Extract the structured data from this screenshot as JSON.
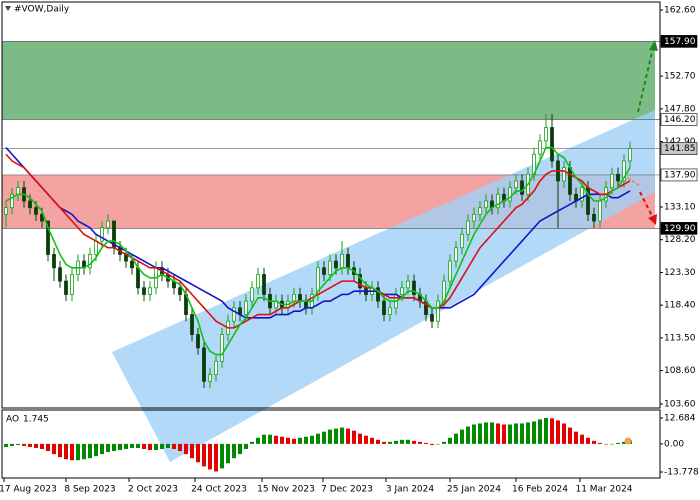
{
  "chart_data": [
    {
      "type": "candlestick",
      "title": "#VOW,Daily",
      "ylim": [
        103.0,
        163.8
      ],
      "yticks": [
        {
          "value": 162.6,
          "label": "162.60"
        },
        {
          "value": 152.7,
          "label": "152.70"
        },
        {
          "value": 147.8,
          "label": "147.80"
        },
        {
          "value": 142.9,
          "label": "142.90"
        },
        {
          "value": 133.1,
          "label": "133.10"
        },
        {
          "value": 128.2,
          "label": "128.20"
        },
        {
          "value": 123.3,
          "label": "123.30"
        },
        {
          "value": 118.4,
          "label": "118.40"
        },
        {
          "value": 113.5,
          "label": "113.50"
        },
        {
          "value": 108.6,
          "label": "108.60"
        },
        {
          "value": 103.6,
          "label": "103.60"
        }
      ],
      "levels": [
        {
          "value": 157.9,
          "label": "157.90",
          "color": "#000000",
          "text_color": "#ffffff"
        },
        {
          "value": 146.2,
          "label": "146.20",
          "color": "#ffffff",
          "text_color": "#000000"
        },
        {
          "value": 141.85,
          "label": "141.85",
          "color": "#c8c8c8",
          "text_color": "#000000"
        },
        {
          "value": 137.9,
          "label": "137.90",
          "color": "#ffffff",
          "text_color": "#000000"
        },
        {
          "value": 129.9,
          "label": "129.90",
          "color": "#000000",
          "text_color": "#ffffff"
        }
      ],
      "zones": [
        {
          "from": 146.2,
          "to": 157.9,
          "color": "#7dbb86"
        },
        {
          "from": 129.9,
          "to": 137.9,
          "color": "#f4a3a3"
        }
      ],
      "date_labels": [
        "17 Aug 2023",
        "8 Sep 2023",
        "2 Oct 2023",
        "24 Oct 2023",
        "15 Nov 2023",
        "7 Dec 2023",
        "3 Jan 2024",
        "25 Jan 2024",
        "16 Feb 2024",
        "11 Mar 2024"
      ],
      "up_color": "#18a018",
      "down_color": "#0b3d0b",
      "open": [
        132,
        133,
        135,
        136,
        134,
        133,
        132,
        131,
        126,
        124,
        122,
        120,
        123,
        125,
        124,
        126,
        128,
        130,
        131,
        127,
        126,
        125,
        124,
        121,
        120,
        121,
        124,
        123,
        122,
        121,
        120,
        117,
        114,
        112,
        107,
        108,
        110,
        114,
        116,
        118,
        117,
        119,
        121,
        123,
        120,
        118,
        119,
        118,
        119,
        120,
        119,
        118,
        120,
        124,
        123,
        125,
        124,
        126,
        124,
        123,
        121,
        120,
        121,
        119,
        117,
        118,
        120,
        121,
        122,
        120,
        119,
        117,
        116,
        119,
        122,
        125,
        127,
        129,
        131,
        132,
        133,
        134,
        133,
        135,
        134,
        136,
        137,
        135,
        138,
        141,
        143,
        145,
        140,
        137,
        139,
        135,
        134,
        136,
        132,
        131,
        134,
        136,
        138,
        137,
        140
      ],
      "high": [
        134,
        136,
        137,
        137,
        135,
        134,
        133,
        131,
        127,
        125,
        123,
        124,
        126,
        126,
        127,
        129,
        131,
        132,
        131,
        128,
        127,
        126,
        125,
        122,
        122,
        125,
        125,
        124,
        123,
        122,
        121,
        118,
        115,
        113,
        109,
        111,
        115,
        117,
        119,
        119,
        120,
        122,
        124,
        124,
        121,
        120,
        120,
        120,
        121,
        121,
        120,
        121,
        125,
        125,
        126,
        126,
        128,
        127,
        125,
        124,
        122,
        122,
        122,
        120,
        119,
        121,
        122,
        123,
        123,
        121,
        120,
        118,
        120,
        123,
        126,
        128,
        130,
        132,
        133,
        134,
        135,
        135,
        136,
        136,
        137,
        138,
        138,
        139,
        142,
        144,
        147,
        147,
        141,
        140,
        140,
        136,
        137,
        137,
        133,
        135,
        137,
        139,
        139,
        141,
        142.9
      ],
      "low": [
        130,
        132,
        134,
        133,
        132,
        131,
        130,
        125,
        122,
        121,
        119,
        119,
        122,
        123,
        123,
        125,
        127,
        129,
        126,
        125,
        124,
        123,
        120,
        119,
        119,
        120,
        122,
        121,
        120,
        119,
        116,
        113,
        111,
        106,
        106,
        107,
        109,
        113,
        115,
        116,
        116,
        118,
        120,
        119,
        117,
        117,
        117,
        117,
        118,
        118,
        117,
        117,
        119,
        122,
        122,
        123,
        123,
        123,
        122,
        120,
        119,
        119,
        118,
        116,
        116,
        117,
        119,
        120,
        119,
        118,
        116,
        115,
        115,
        118,
        121,
        124,
        126,
        128,
        130,
        131,
        132,
        132,
        132,
        133,
        133,
        135,
        134,
        134,
        137,
        140,
        142,
        139,
        130,
        136,
        134,
        133,
        133,
        131,
        130,
        130,
        133,
        135,
        136,
        136,
        139
      ],
      "close": [
        133,
        135,
        136,
        134,
        133,
        132,
        131,
        126,
        124,
        122,
        120,
        123,
        125,
        124,
        126,
        128,
        130,
        131,
        127,
        126,
        125,
        124,
        121,
        120,
        121,
        124,
        123,
        122,
        121,
        120,
        117,
        114,
        112,
        107,
        108,
        110,
        114,
        116,
        118,
        117,
        119,
        121,
        123,
        120,
        118,
        119,
        118,
        119,
        120,
        119,
        118,
        120,
        124,
        123,
        125,
        124,
        126,
        124,
        123,
        121,
        120,
        121,
        119,
        117,
        118,
        120,
        121,
        122,
        120,
        119,
        117,
        116,
        119,
        122,
        125,
        127,
        129,
        131,
        132,
        133,
        134,
        133,
        135,
        134,
        136,
        137,
        135,
        138,
        141,
        143,
        145,
        140,
        137,
        139,
        135,
        134,
        136,
        132,
        131,
        134,
        136,
        138,
        137,
        140,
        141.85
      ],
      "series": [
        {
          "color": "#1414cc",
          "values": [
            142,
            141,
            140,
            139,
            138,
            137,
            136,
            135,
            134,
            133,
            132.5,
            132,
            131,
            130.5,
            130,
            129,
            128.5,
            128,
            127.5,
            127,
            126.5,
            126,
            125.5,
            125,
            124.5,
            124,
            124,
            123.5,
            123,
            122.5,
            122,
            121.5,
            121,
            120.5,
            120,
            119.5,
            119,
            118,
            117.5,
            117,
            116.5,
            116.5,
            116.5,
            116.5,
            116.5,
            117,
            117,
            117,
            117.5,
            117.5,
            118,
            118,
            118.5,
            119,
            119,
            119.5,
            120,
            120,
            120.5,
            120.5,
            120.5,
            120.5,
            120.5,
            120,
            120,
            120,
            119.5,
            119.5,
            119.5,
            119,
            118.5,
            118,
            118,
            118,
            118,
            118.5,
            119,
            119.5,
            120,
            121,
            122,
            123,
            124,
            125,
            126,
            127,
            128,
            129,
            130,
            131,
            131.5,
            132,
            132.5,
            133,
            133.5,
            134,
            134.5,
            135,
            135,
            135,
            135,
            134.5,
            134.5,
            135,
            135.5
          ]
        },
        {
          "color": "#dd1111",
          "values": [
            141,
            140,
            139.5,
            139,
            138,
            137,
            136,
            135,
            134,
            133,
            132,
            131,
            130,
            129,
            128.5,
            128,
            127.5,
            127,
            127,
            126.5,
            126,
            125.5,
            125,
            124.5,
            124,
            124,
            123.5,
            123,
            122.5,
            122,
            121,
            120,
            119,
            118,
            117,
            116,
            115.5,
            115,
            115,
            115.5,
            116,
            116.5,
            117,
            117,
            117,
            117.5,
            118,
            118,
            118.5,
            119,
            119,
            119.5,
            120,
            120.5,
            121,
            121.5,
            122,
            122,
            122,
            121.5,
            121,
            121,
            120.5,
            120,
            119.5,
            119.5,
            119.5,
            119.5,
            119.5,
            119,
            118.5,
            118,
            118,
            118.5,
            119.5,
            121,
            122.5,
            124,
            125.5,
            127,
            128,
            129,
            130,
            131,
            132,
            133,
            133.5,
            134.5,
            135.5,
            137,
            138,
            138.5,
            138.5,
            138.5,
            138,
            137.5,
            137,
            136,
            135.5,
            135,
            135,
            135.5,
            136,
            136.5,
            137
          ]
        },
        {
          "color": "#14c014",
          "values": [
            134,
            134.5,
            135,
            135,
            134.5,
            133.5,
            132.5,
            130,
            128,
            126,
            124.5,
            124,
            124,
            124,
            124.5,
            125.5,
            127,
            128,
            128,
            127.5,
            126.5,
            125.5,
            124,
            123,
            122.5,
            122.5,
            123,
            122.5,
            122,
            121.5,
            120,
            118,
            116,
            113,
            111.5,
            111,
            111,
            112.5,
            114,
            115.5,
            116.5,
            118,
            119.5,
            119.5,
            119,
            119,
            118.5,
            118.5,
            119,
            119,
            119,
            119,
            120.5,
            121.5,
            122.5,
            123.5,
            124,
            124,
            123.5,
            122.5,
            121.5,
            121,
            120.5,
            119.5,
            119,
            119,
            119.5,
            120.5,
            120.5,
            120,
            119,
            118,
            118,
            119,
            121,
            123,
            125,
            127,
            129,
            130.5,
            132,
            133,
            133.5,
            134,
            134.5,
            135.5,
            135.5,
            136.5,
            138,
            140,
            142,
            142,
            141,
            140.5,
            139,
            137.5,
            136.5,
            135,
            134,
            134,
            134.5,
            135.5,
            136,
            137.5,
            139
          ]
        }
      ]
    },
    {
      "type": "histogram",
      "title": "AO",
      "ylim": [
        -16.7,
        16.6
      ],
      "yticks": [
        12.684,
        {
          "value": 0,
          "label": "0.00"
        },
        -13.778
      ],
      "up_color": "#008a00",
      "down_color": "#e60000",
      "values": [
        -1.5,
        -1,
        -0.5,
        -1,
        -1.5,
        -2,
        -2.5,
        -3.5,
        -5,
        -6.5,
        -7.5,
        -8,
        -8,
        -7.5,
        -7,
        -6,
        -5,
        -4,
        -3.5,
        -3,
        -2.5,
        -2,
        -2,
        -2.5,
        -3,
        -3,
        -2.5,
        -2,
        -2.5,
        -3.5,
        -5,
        -7,
        -9,
        -11,
        -12.5,
        -13.5,
        -12,
        -9.5,
        -7,
        -5,
        -2.5,
        1,
        3,
        4.5,
        4.5,
        4,
        3.5,
        3,
        2.5,
        3,
        3.5,
        4,
        5,
        6,
        7,
        7.5,
        8,
        7.5,
        6.5,
        5,
        4,
        3,
        2,
        1,
        1,
        1.5,
        2,
        2,
        1.5,
        1,
        0.5,
        -0.5,
        0,
        1,
        3,
        5,
        7,
        8.5,
        9.5,
        10,
        10.5,
        10.5,
        10,
        9.5,
        9.5,
        10,
        10,
        10.5,
        11,
        12,
        12.7,
        12.5,
        11.5,
        10,
        8,
        6,
        4.5,
        3,
        1.5,
        0.5,
        0,
        0,
        0.5,
        1,
        1.745
      ]
    }
  ]
}
